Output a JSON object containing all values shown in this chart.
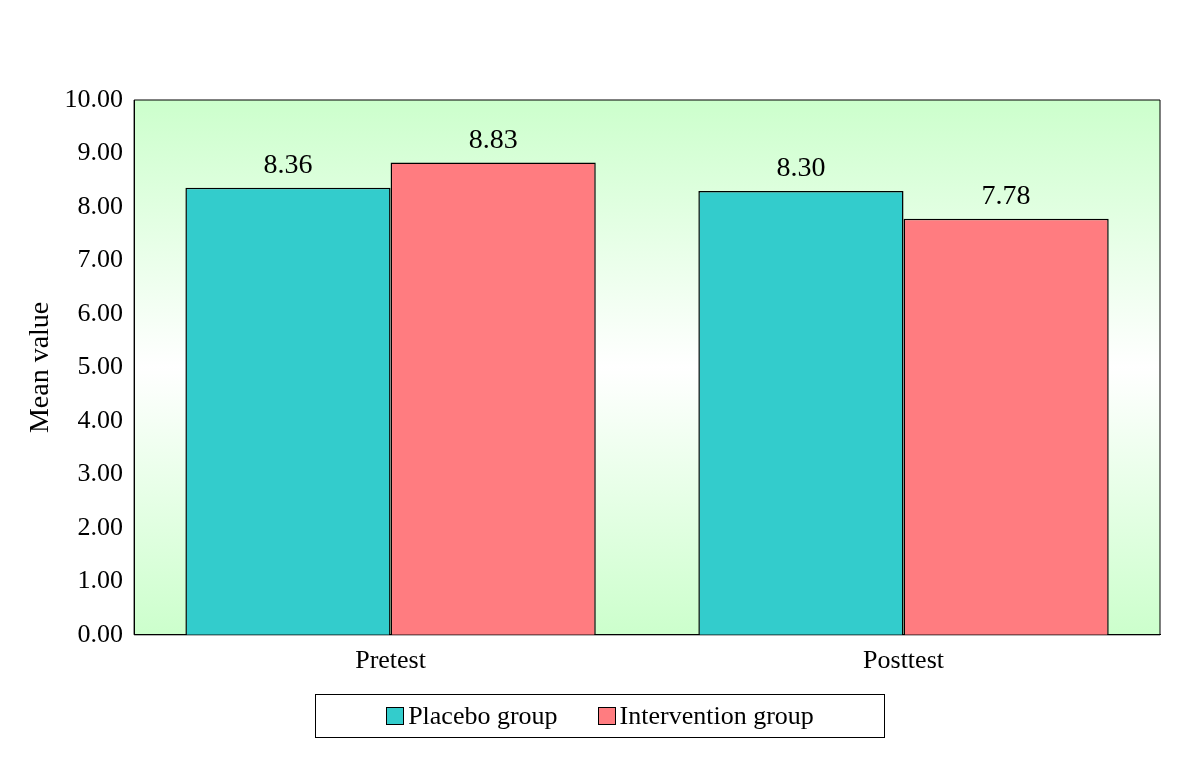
{
  "chart_data": {
    "type": "bar",
    "ylabel": "Mean value",
    "categories": [
      "Pretest",
      "Posttest"
    ],
    "series": [
      {
        "name": "Placebo group",
        "color": "#33cccc",
        "values": [
          8.36,
          8.3
        ],
        "value_labels": [
          "8.36",
          "8.30"
        ]
      },
      {
        "name": "Intervention group",
        "color": "#ff7c80",
        "values": [
          8.83,
          7.78
        ],
        "value_labels": [
          "8.83",
          "7.78"
        ]
      }
    ],
    "ylim": [
      0,
      10
    ],
    "yticks": [
      {
        "value": 0,
        "label": "0.00"
      },
      {
        "value": 1,
        "label": "1.00"
      },
      {
        "value": 2,
        "label": "2.00"
      },
      {
        "value": 3,
        "label": "3.00"
      },
      {
        "value": 4,
        "label": "4.00"
      },
      {
        "value": 5,
        "label": "5.00"
      },
      {
        "value": 6,
        "label": "6.00"
      },
      {
        "value": 7,
        "label": "7.00"
      },
      {
        "value": 8,
        "label": "8.00"
      },
      {
        "value": 9,
        "label": "9.00"
      },
      {
        "value": 10,
        "label": "10.00"
      }
    ],
    "grid": false,
    "legend": "bottom"
  }
}
